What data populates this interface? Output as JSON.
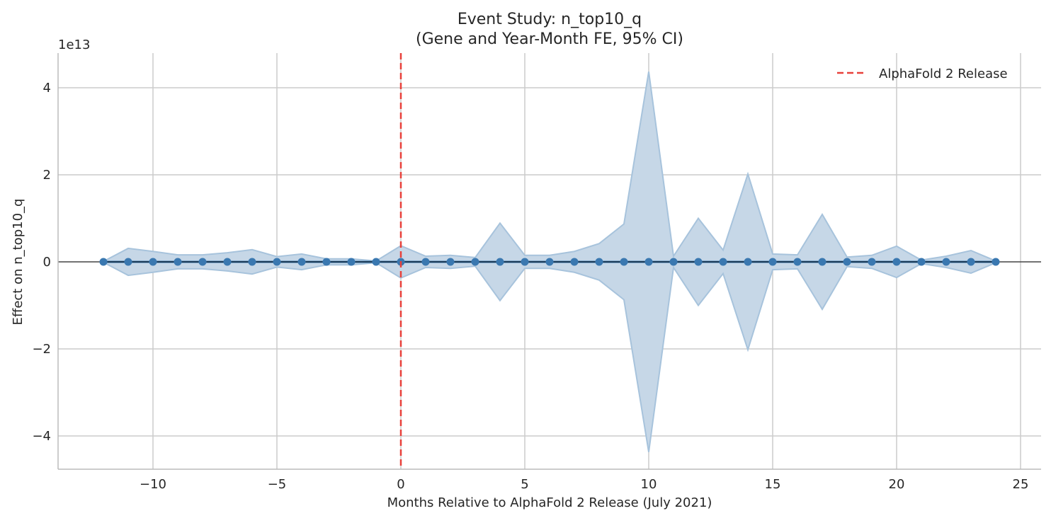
{
  "chart_data": {
    "type": "line",
    "title": "Event Study: n_top10_q",
    "subtitle": "(Gene and Year-Month FE, 95% CI)",
    "xlabel": "Months Relative to AlphaFold 2 Release (July 2021)",
    "ylabel": "Effect on n_top10_q",
    "y_offset_label": "1e13",
    "xlim": [
      -14,
      26
    ],
    "ylim": [
      -4.8,
      4.8
    ],
    "x_ticks": [
      -10,
      -5,
      0,
      5,
      10,
      15,
      20,
      25
    ],
    "x_tick_labels": [
      "−10",
      "−5",
      "0",
      "5",
      "10",
      "15",
      "20",
      "25"
    ],
    "y_ticks": [
      -4,
      -2,
      0,
      2,
      4
    ],
    "y_tick_labels": [
      "−4",
      "−2",
      "0",
      "2",
      "4"
    ],
    "grid": true,
    "legend": {
      "placement": "top-right",
      "entries": [
        "AlphaFold 2 Release"
      ]
    },
    "vline": {
      "x": 0,
      "label": "AlphaFold 2 Release",
      "color": "#e8403a",
      "style": "dashed"
    },
    "zero_line": true,
    "colors": {
      "series": "#3a78b0",
      "ci_fill": "#c6d7e7",
      "ci_edge": "#a7c3dc",
      "reference": "#e8403a"
    },
    "x": [
      -12,
      -11,
      -10,
      -9,
      -8,
      -7,
      -6,
      -5,
      -4,
      -3,
      -2,
      -1,
      0,
      1,
      2,
      3,
      4,
      5,
      6,
      7,
      8,
      9,
      10,
      11,
      12,
      13,
      14,
      15,
      16,
      17,
      18,
      19,
      20,
      21,
      22,
      23,
      24
    ],
    "series": [
      {
        "values": [
          0,
          0,
          0,
          0,
          0,
          0,
          0,
          0,
          0,
          0,
          0,
          0,
          0,
          0,
          0,
          0,
          0,
          0,
          0,
          0,
          0,
          0,
          0,
          0,
          0,
          0,
          0,
          0,
          0,
          0,
          0,
          0,
          0,
          0,
          0,
          0,
          0
        ],
        "ci_upper": [
          0.01,
          0.31,
          0.24,
          0.16,
          0.16,
          0.21,
          0.28,
          0.12,
          0.18,
          0.07,
          0.07,
          0.02,
          0.37,
          0.13,
          0.15,
          0.1,
          0.89,
          0.15,
          0.15,
          0.24,
          0.42,
          0.87,
          4.37,
          0.13,
          1.0,
          0.27,
          2.02,
          0.18,
          0.16,
          1.09,
          0.11,
          0.15,
          0.36,
          0.04,
          0.13,
          0.26,
          0.02
        ],
        "ci_lower": [
          -0.01,
          -0.31,
          -0.24,
          -0.16,
          -0.16,
          -0.21,
          -0.28,
          -0.12,
          -0.18,
          -0.07,
          -0.07,
          -0.02,
          -0.37,
          -0.13,
          -0.15,
          -0.1,
          -0.89,
          -0.15,
          -0.15,
          -0.24,
          -0.42,
          -0.87,
          -4.37,
          -0.13,
          -1.0,
          -0.27,
          -2.02,
          -0.18,
          -0.16,
          -1.09,
          -0.11,
          -0.15,
          -0.36,
          -0.04,
          -0.13,
          -0.26,
          -0.02
        ]
      }
    ]
  }
}
